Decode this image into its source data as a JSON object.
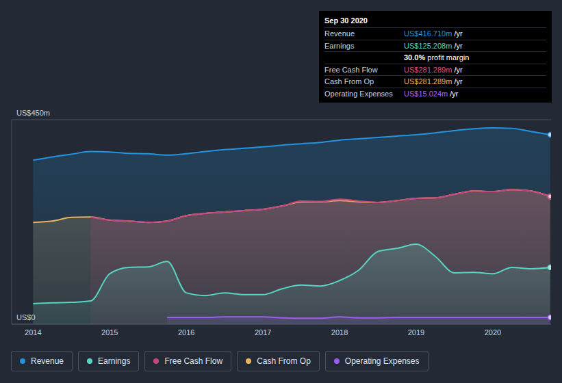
{
  "chart_data": {
    "type": "area",
    "x": [
      2014,
      2014.25,
      2014.5,
      2014.75,
      2015,
      2015.25,
      2015.5,
      2015.75,
      2016,
      2016.25,
      2016.5,
      2016.75,
      2017,
      2017.25,
      2017.5,
      2017.75,
      2018,
      2018.25,
      2018.5,
      2018.75,
      2019,
      2019.25,
      2019.5,
      2019.75,
      2020,
      2020.25,
      2020.5,
      2020.75
    ],
    "xlim": [
      2013.72,
      2020.76
    ],
    "xticks": [
      2014,
      2015,
      2016,
      2017,
      2018,
      2019,
      2020
    ],
    "ylim": [
      0,
      450
    ],
    "yticks": [
      {
        "value": 0,
        "label": "US$0"
      },
      {
        "value": 450,
        "label": "US$450m"
      }
    ],
    "grid": true,
    "legend": "bottom",
    "series": [
      {
        "name": "Revenue",
        "color": "#2394df",
        "values": [
          361,
          368,
          374,
          380,
          379,
          376,
          375,
          372,
          375,
          380,
          384,
          387,
          390,
          394,
          397,
          400,
          405,
          408,
          411,
          414,
          417,
          421,
          426,
          430,
          432,
          431,
          424,
          417
        ]
      },
      {
        "name": "Earnings",
        "color": "#58d5c2",
        "values": [
          45,
          47,
          48,
          51,
          111,
          125,
          126,
          138,
          69,
          63,
          69,
          65,
          65,
          78,
          86,
          84,
          96,
          119,
          160,
          167,
          176,
          149,
          113,
          114,
          111,
          125,
          122,
          125
        ]
      },
      {
        "name": "Free Cash Flow",
        "color": "#c8467f",
        "values": [
          null,
          null,
          null,
          236,
          229,
          227,
          224,
          227,
          239,
          244,
          247,
          250,
          253,
          260,
          271,
          270,
          275,
          271,
          268,
          272,
          277,
          278,
          286,
          293,
          292,
          296,
          293,
          281
        ]
      },
      {
        "name": "Cash From Op",
        "color": "#e8b462",
        "values": [
          224,
          227,
          235,
          236,
          229,
          227,
          224,
          227,
          239,
          244,
          247,
          250,
          253,
          260,
          269,
          269,
          272,
          269,
          268,
          272,
          277,
          278,
          286,
          293,
          292,
          296,
          293,
          281
        ]
      },
      {
        "name": "Operating Expenses",
        "color": "#9b5cf0",
        "values": [
          null,
          null,
          null,
          null,
          null,
          null,
          null,
          15,
          15,
          15,
          16,
          16,
          16,
          14,
          13,
          13,
          16,
          14,
          14,
          15,
          15,
          15,
          15,
          15,
          15,
          15,
          15,
          15
        ]
      }
    ],
    "annotation": {
      "title": "Sep 30 2020",
      "rows": [
        {
          "label": "Revenue",
          "value": "US$416.710m",
          "suffix": "/yr",
          "color": "#2394df"
        },
        {
          "label": "Earnings",
          "value": "US$125.208m",
          "suffix": "/yr",
          "color": "#58d5c2"
        },
        {
          "value": "30.0%",
          "suffix": "profit margin",
          "color": "#ffffff"
        },
        {
          "label": "Free Cash Flow",
          "value": "US$281.289m",
          "suffix": "/yr",
          "color": "#e0508f"
        },
        {
          "label": "Cash From Op",
          "value": "US$281.289m",
          "suffix": "/yr",
          "color": "#e8b462"
        },
        {
          "label": "Operating Expenses",
          "value": "US$15.024m",
          "suffix": "/yr",
          "color": "#a56cf5"
        }
      ]
    }
  }
}
